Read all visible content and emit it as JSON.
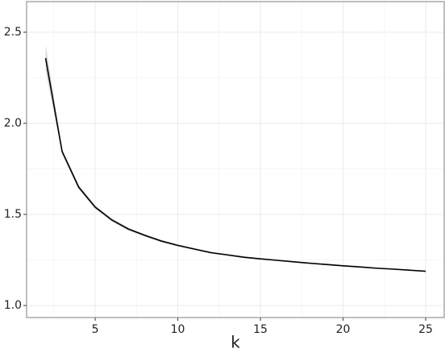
{
  "chart_data": {
    "type": "line",
    "x_label": "k",
    "x": [
      2,
      3,
      4,
      5,
      6,
      7,
      8,
      9,
      10,
      11,
      12,
      13,
      14,
      15,
      16,
      17,
      18,
      19,
      20,
      21,
      22,
      23,
      24,
      25
    ],
    "series": [
      {
        "color": "#000000",
        "band_color": "#cccccc",
        "values": [
          2.358,
          1.845,
          1.65,
          1.54,
          1.47,
          1.42,
          1.385,
          1.354,
          1.33,
          1.31,
          1.29,
          1.278,
          1.265,
          1.256,
          1.248,
          1.24,
          1.232,
          1.225,
          1.218,
          1.212,
          1.205,
          1.2,
          1.194,
          1.188
        ],
        "upper": [
          2.43,
          1.86,
          1.662,
          1.55,
          1.479,
          1.428,
          1.392,
          1.36,
          1.336,
          1.315,
          1.295,
          1.283,
          1.27,
          1.26,
          1.252,
          1.244,
          1.236,
          1.229,
          1.222,
          1.216,
          1.209,
          1.204,
          1.198,
          1.192
        ],
        "lower": [
          2.29,
          1.83,
          1.638,
          1.53,
          1.461,
          1.412,
          1.378,
          1.348,
          1.324,
          1.305,
          1.285,
          1.273,
          1.26,
          1.252,
          1.244,
          1.236,
          1.228,
          1.221,
          1.214,
          1.208,
          1.201,
          1.196,
          1.19,
          1.184
        ]
      }
    ],
    "xlim": [
      0.85,
      26.12
    ],
    "ylim": [
      0.934,
      2.668
    ],
    "xticks": [
      5,
      10,
      15,
      20,
      25
    ],
    "yticks": [
      {
        "value": 1.0,
        "label": "1.0"
      },
      1.5,
      {
        "value": 2.0,
        "label": "2.0"
      },
      2.5
    ],
    "xminor": [
      2.5,
      7.5,
      12.5,
      17.5,
      22.5
    ],
    "yminor": [
      1.25,
      1.75,
      2.25
    ],
    "grid": true
  }
}
